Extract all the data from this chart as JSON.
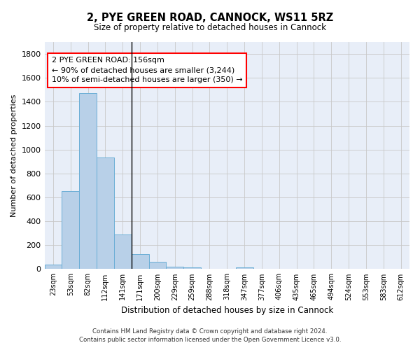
{
  "title": "2, PYE GREEN ROAD, CANNOCK, WS11 5RZ",
  "subtitle": "Size of property relative to detached houses in Cannock",
  "xlabel": "Distribution of detached houses by size in Cannock",
  "ylabel": "Number of detached properties",
  "bar_color": "#b8d0e8",
  "bar_edge_color": "#6aaed6",
  "background_color": "#e8eef8",
  "grid_color": "#c8c8c8",
  "categories": [
    "23sqm",
    "53sqm",
    "82sqm",
    "112sqm",
    "141sqm",
    "171sqm",
    "200sqm",
    "229sqm",
    "259sqm",
    "288sqm",
    "318sqm",
    "347sqm",
    "377sqm",
    "406sqm",
    "435sqm",
    "465sqm",
    "494sqm",
    "524sqm",
    "553sqm",
    "583sqm",
    "612sqm"
  ],
  "values": [
    40,
    650,
    1470,
    935,
    290,
    125,
    62,
    22,
    12,
    0,
    0,
    12,
    0,
    0,
    0,
    0,
    0,
    0,
    0,
    0,
    0
  ],
  "ylim": [
    0,
    1900
  ],
  "yticks": [
    0,
    200,
    400,
    600,
    800,
    1000,
    1200,
    1400,
    1600,
    1800
  ],
  "annotation_line1": "2 PYE GREEN ROAD: 156sqm",
  "annotation_line2": "← 90% of detached houses are smaller (3,244)",
  "annotation_line3": "10% of semi-detached houses are larger (350) →",
  "vline_x": 4.5,
  "footer_line1": "Contains HM Land Registry data © Crown copyright and database right 2024.",
  "footer_line2": "Contains public sector information licensed under the Open Government Licence v3.0."
}
